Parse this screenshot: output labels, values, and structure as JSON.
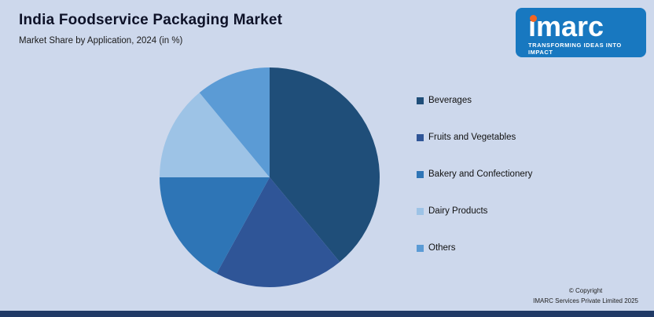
{
  "header": {
    "title": "India Foodservice Packaging Market",
    "subtitle": "Market Share by Application, 2024 (in %)"
  },
  "logo": {
    "brand": "imarc",
    "tagline": "TRANSFORMING IDEAS INTO IMPACT",
    "panel_color": "#1878c0",
    "accent_color": "#f26522"
  },
  "chart_data": {
    "type": "pie",
    "title": "India Foodservice Packaging Market",
    "subtitle": "Market Share by Application, 2024 (in %)",
    "categories": [
      "Beverages",
      "Fruits and Vegetables",
      "Bakery and Confectionery",
      "Dairy Products",
      "Others"
    ],
    "values": [
      39,
      19,
      17,
      14,
      11
    ],
    "colors": [
      "#1f4e79",
      "#2f5597",
      "#2e75b6",
      "#9dc3e6",
      "#5b9bd5"
    ],
    "start_angle_deg": 0,
    "direction": "clockwise",
    "legend_position": "right",
    "data_labels": false
  },
  "footer": {
    "copyright_line1": "© Copyright",
    "copyright_line2": "IMARC Services Private Limited 2025"
  },
  "colors": {
    "background": "#cdd8ec",
    "title_text": "#0e1228",
    "bottom_bar": "#203a66"
  }
}
